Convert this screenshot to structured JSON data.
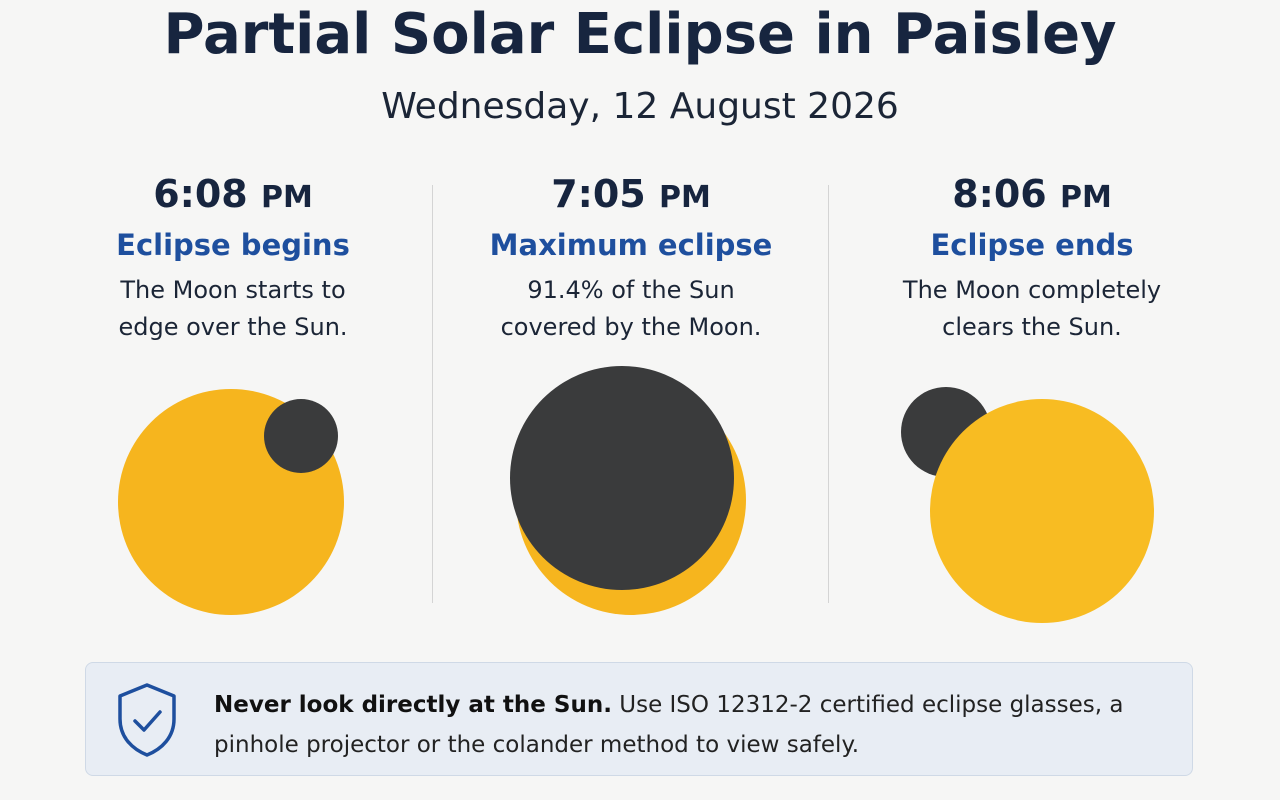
{
  "header": {
    "title": "Partial Solar Eclipse in Paisley",
    "subtitle": "Wednesday, 12 August 2026"
  },
  "phases": [
    {
      "time": "6:08",
      "period": "PM",
      "heading": "Eclipse begins",
      "description": "The Moon starts to edge over the Sun."
    },
    {
      "time": "7:05",
      "period": "PM",
      "heading": "Maximum eclipse",
      "description": "91.4% of the Sun covered by the Moon."
    },
    {
      "time": "8:06",
      "period": "PM",
      "heading": "Eclipse ends",
      "description": "The Moon completely clears the Sun."
    }
  ],
  "warning": {
    "bold": "Never look directly at the Sun.",
    "text": "Use ISO 12312-2 certified eclipse glasses, a pinhole projector or the colander method to view safely."
  }
}
